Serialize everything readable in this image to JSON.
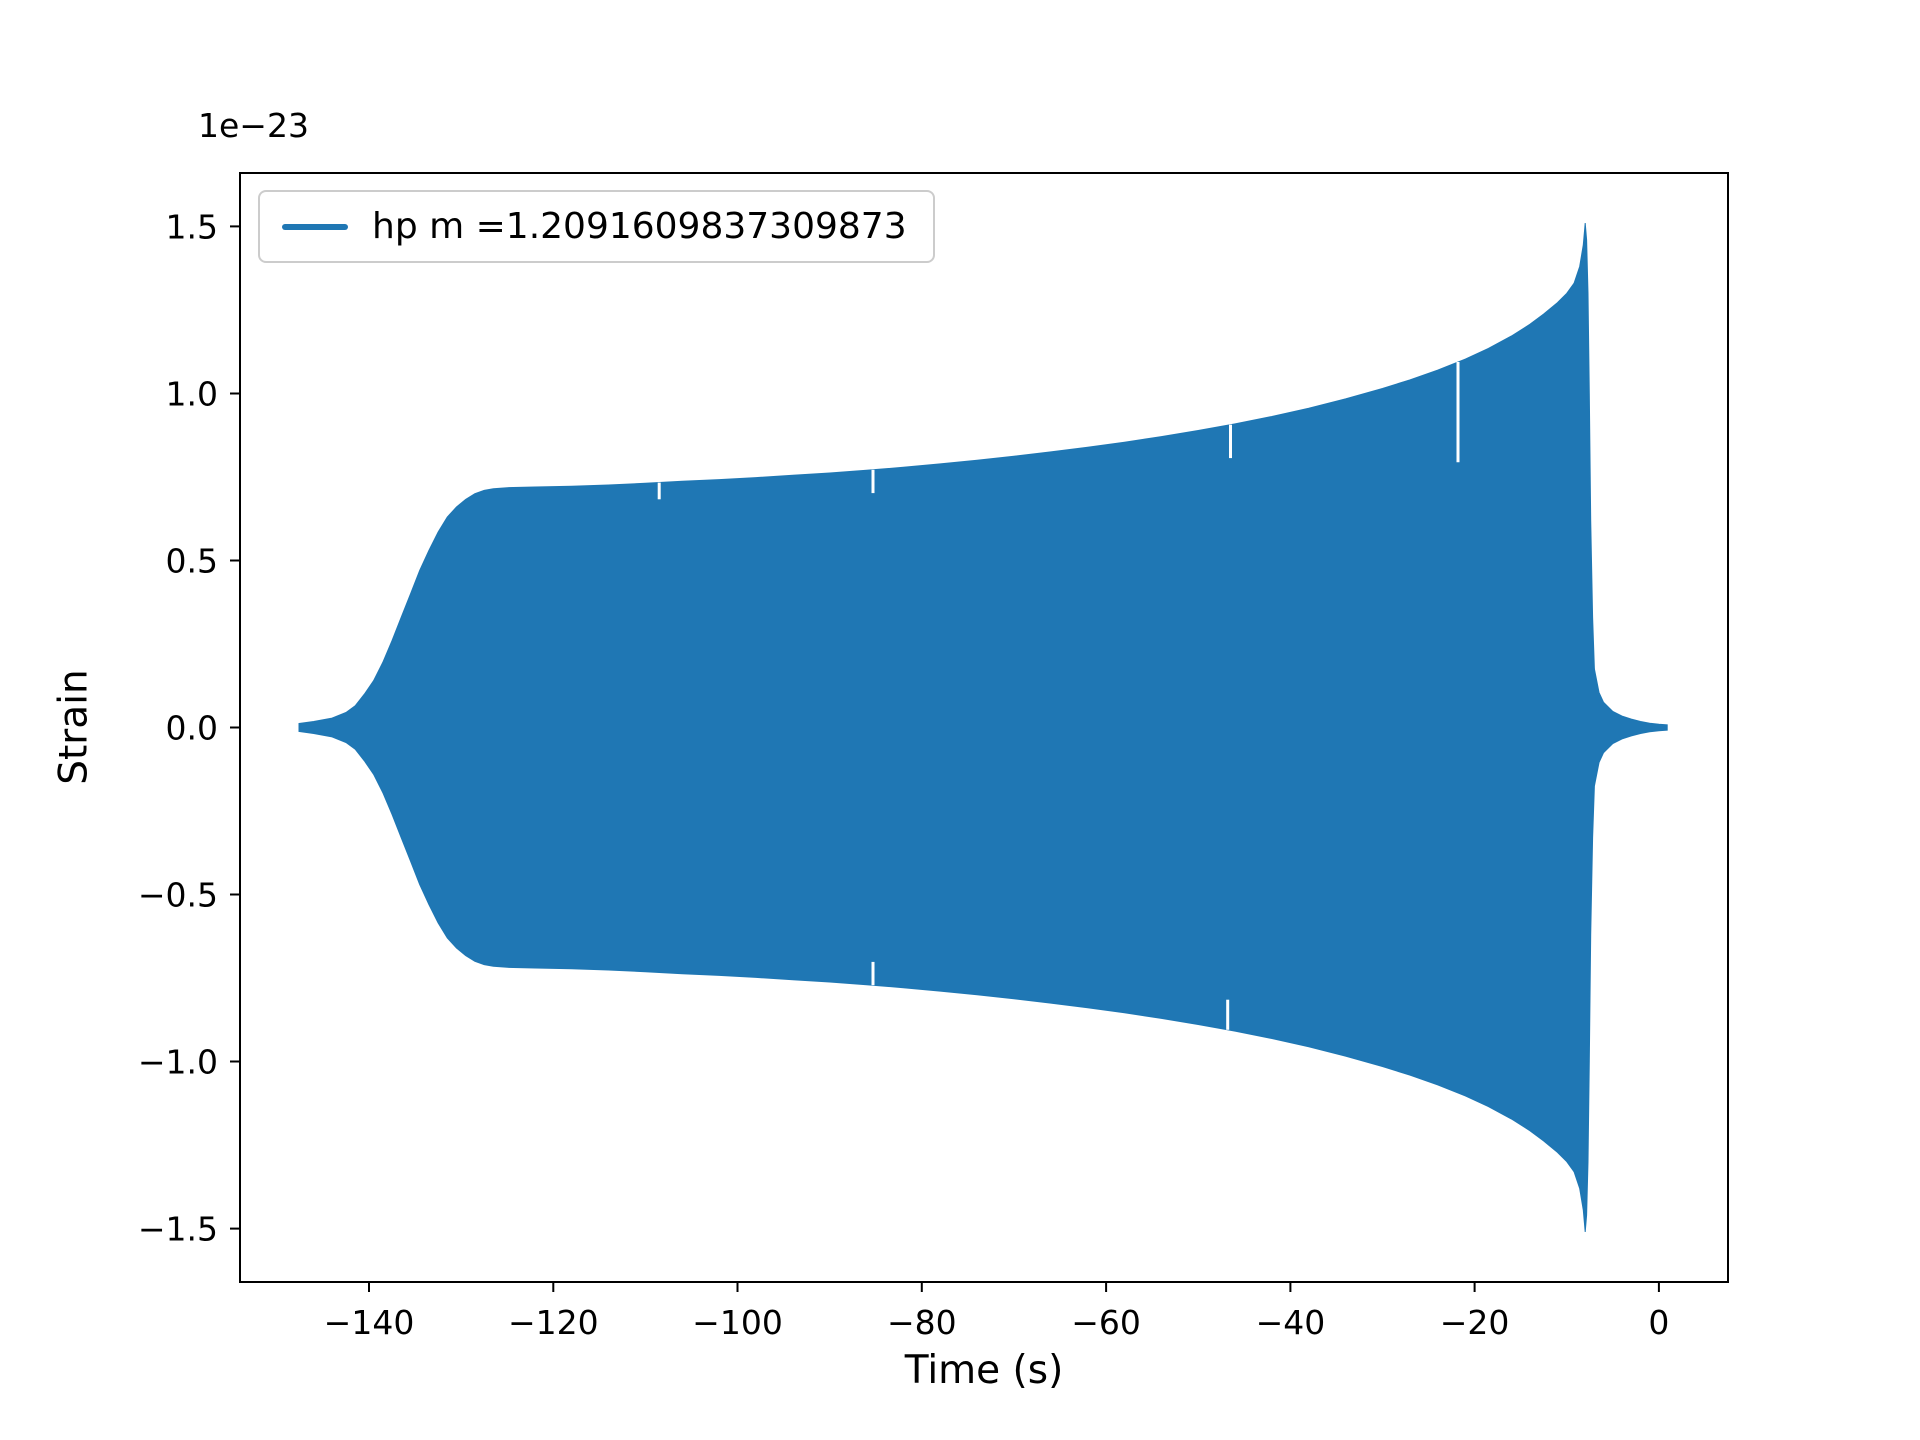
{
  "chart_data": {
    "type": "area",
    "title": "",
    "xlabel": "Time (s)",
    "ylabel": "Strain",
    "y_offset_label": "1e−23",
    "series_color": "#1f77b4",
    "background_color": "#ffffff",
    "grid": false,
    "legend_position": "upper left",
    "legend": [
      {
        "label": "hp m =1.2091609837309873",
        "color": "#1f77b4"
      }
    ],
    "xlim": [
      -154,
      7.5
    ],
    "ylim": [
      -1.66,
      1.66
    ],
    "xticks": [
      -140,
      -120,
      -100,
      -80,
      -60,
      -40,
      -20,
      0
    ],
    "xtick_labels": [
      "−140",
      "−120",
      "−100",
      "−80",
      "−60",
      "−40",
      "−20",
      "0"
    ],
    "yticks": [
      -1.5,
      -1.0,
      -0.5,
      0.0,
      0.5,
      1.0,
      1.5
    ],
    "ytick_labels": [
      "−1.5",
      "−1.0",
      "−0.5",
      "0.0",
      "0.5",
      "1.0",
      "1.5"
    ],
    "description": "Dense oscillatory gravitational-wave chirp strain signal shown as a filled symmetric envelope about zero; amplitude units are 1e-23.",
    "envelope": {
      "t": [
        -147.6,
        -146,
        -144,
        -142.5,
        -141.5,
        -140.5,
        -139.5,
        -138.5,
        -137.5,
        -136.5,
        -135.5,
        -134.5,
        -133.5,
        -132.5,
        -131.5,
        -130.5,
        -129.5,
        -128.5,
        -127.5,
        -126.5,
        -125,
        -122,
        -118,
        -114,
        -110,
        -106,
        -102,
        -98,
        -94,
        -90,
        -86,
        -82,
        -78,
        -74,
        -70,
        -66,
        -62,
        -58,
        -54,
        -50,
        -46,
        -42,
        -38,
        -34,
        -30,
        -27,
        -24,
        -21,
        -18.5,
        -16,
        -14,
        -12.5,
        -11,
        -10,
        -9.2,
        -8.6,
        -8.2,
        -8.0,
        -7.85,
        -7.7,
        -7.55,
        -7.4,
        -7.2,
        -7.0,
        -6.5,
        -6.0,
        -5.0,
        -4.0,
        -3.0,
        -2.0,
        -1.0,
        0.0,
        0.9
      ],
      "a": [
        0.012,
        0.018,
        0.028,
        0.045,
        0.065,
        0.1,
        0.14,
        0.195,
        0.26,
        0.33,
        0.4,
        0.47,
        0.53,
        0.585,
        0.63,
        0.66,
        0.683,
        0.7,
        0.71,
        0.715,
        0.718,
        0.72,
        0.722,
        0.726,
        0.731,
        0.737,
        0.742,
        0.748,
        0.755,
        0.762,
        0.77,
        0.779,
        0.789,
        0.8,
        0.812,
        0.825,
        0.839,
        0.854,
        0.871,
        0.889,
        0.909,
        0.931,
        0.956,
        0.984,
        1.015,
        1.041,
        1.07,
        1.103,
        1.135,
        1.172,
        1.207,
        1.238,
        1.272,
        1.3,
        1.33,
        1.38,
        1.445,
        1.51,
        1.46,
        1.3,
        1.0,
        0.62,
        0.33,
        0.175,
        0.105,
        0.075,
        0.048,
        0.034,
        0.025,
        0.018,
        0.013,
        0.01,
        0.008
      ]
    },
    "notches": [
      {
        "t": -21.8,
        "side": "top",
        "depth": 0.3
      },
      {
        "t": -46.5,
        "side": "top",
        "depth": 0.1
      },
      {
        "t": -46.8,
        "side": "bottom",
        "depth": 0.09
      },
      {
        "t": -85.3,
        "side": "top",
        "depth": 0.07
      },
      {
        "t": -85.3,
        "side": "bottom",
        "depth": 0.07
      },
      {
        "t": -108.5,
        "side": "top",
        "depth": 0.05
      }
    ]
  }
}
